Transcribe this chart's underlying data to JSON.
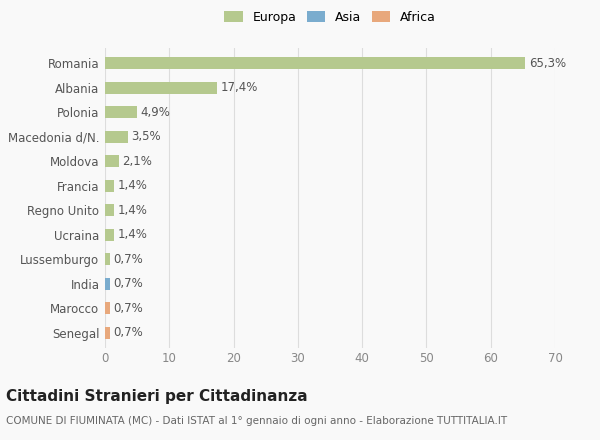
{
  "countries": [
    "Romania",
    "Albania",
    "Polonia",
    "Macedonia d/N.",
    "Moldova",
    "Francia",
    "Regno Unito",
    "Ucraina",
    "Lussemburgo",
    "India",
    "Marocco",
    "Senegal"
  ],
  "values": [
    65.3,
    17.4,
    4.9,
    3.5,
    2.1,
    1.4,
    1.4,
    1.4,
    0.7,
    0.7,
    0.7,
    0.7
  ],
  "labels": [
    "65,3%",
    "17,4%",
    "4,9%",
    "3,5%",
    "2,1%",
    "1,4%",
    "1,4%",
    "1,4%",
    "0,7%",
    "0,7%",
    "0,7%",
    "0,7%"
  ],
  "bar_colors": [
    "#b5c98e",
    "#b5c98e",
    "#b5c98e",
    "#b5c98e",
    "#b5c98e",
    "#b5c98e",
    "#b5c98e",
    "#b5c98e",
    "#b5c98e",
    "#7aacce",
    "#e8a87c",
    "#e8a87c"
  ],
  "xlim": [
    0,
    70
  ],
  "xticks": [
    0,
    10,
    20,
    30,
    40,
    50,
    60,
    70
  ],
  "title": "Cittadini Stranieri per Cittadinanza",
  "subtitle": "COMUNE DI FIUMINATA (MC) - Dati ISTAT al 1° gennaio di ogni anno - Elaborazione TUTTITALIA.IT",
  "legend_labels": [
    "Europa",
    "Asia",
    "Africa"
  ],
  "legend_colors": [
    "#b5c98e",
    "#7aacce",
    "#e8a87c"
  ],
  "bg_color": "#f9f9f9",
  "grid_color": "#dddddd",
  "bar_height": 0.5,
  "label_fontsize": 8.5,
  "axis_fontsize": 8.5,
  "title_fontsize": 11,
  "subtitle_fontsize": 7.5
}
